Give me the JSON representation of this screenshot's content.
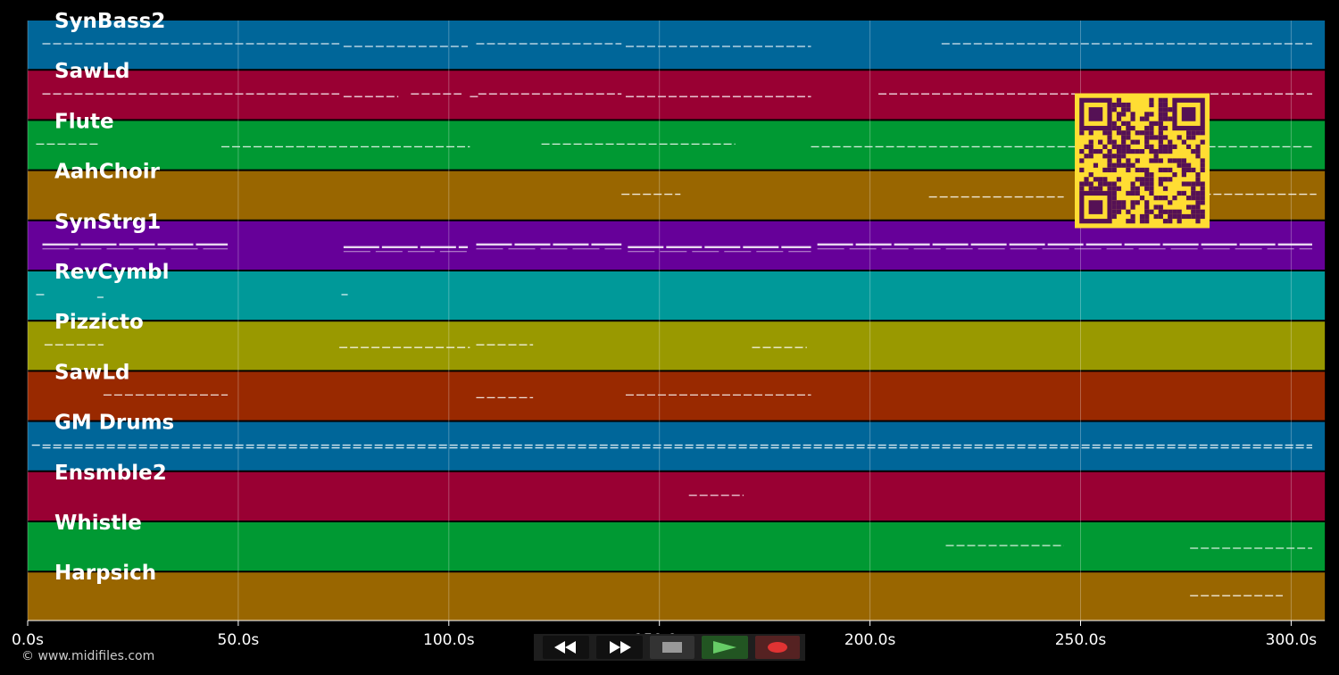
{
  "window": {
    "background": "#000000"
  },
  "tracks": [
    {
      "name": "SynBass2",
      "color": "#006699"
    },
    {
      "name": "SawLd",
      "color": "#990033"
    },
    {
      "name": "Flute",
      "color": "#009933"
    },
    {
      "name": "AahChoir",
      "color": "#996600"
    },
    {
      "name": "SynStrg1",
      "color": "#660099"
    },
    {
      "name": "RevCymbl",
      "color": "#009999"
    },
    {
      "name": "Pizzicto",
      "color": "#999900"
    },
    {
      "name": "SawLd",
      "color": "#992900"
    },
    {
      "name": "GM Drums",
      "color": "#006699"
    },
    {
      "name": "Ensmble2",
      "color": "#990033"
    },
    {
      "name": "Whistle",
      "color": "#009933"
    },
    {
      "name": "Harpsich",
      "color": "#996600"
    }
  ],
  "timeline": {
    "unit": "s",
    "max_seconds": 308,
    "ticks": [
      {
        "value": 0,
        "label": "0.0s"
      },
      {
        "value": 50,
        "label": "50.0s"
      },
      {
        "value": 100,
        "label": "100.0s"
      },
      {
        "value": 150,
        "label": "150.0s"
      },
      {
        "value": 200,
        "label": "200.0s"
      },
      {
        "value": 250,
        "label": "250.0s"
      },
      {
        "value": 300,
        "label": "300.0s"
      }
    ]
  },
  "note_segments": [
    [
      [
        3.5,
        74
      ],
      [
        75,
        104.5
      ],
      [
        106.5,
        141
      ],
      [
        142,
        186
      ],
      [
        217,
        305
      ]
    ],
    [
      [
        3.5,
        74
      ],
      [
        75,
        88
      ],
      [
        91,
        103
      ],
      [
        105,
        107
      ],
      [
        107,
        141
      ],
      [
        142,
        186
      ],
      [
        202,
        305
      ]
    ],
    [
      [
        2,
        17
      ],
      [
        46,
        105
      ],
      [
        122,
        168
      ],
      [
        186,
        305
      ]
    ],
    [
      [
        141,
        155
      ],
      [
        214,
        246
      ],
      [
        279,
        306
      ]
    ],
    [
      [
        3.5,
        47.5
      ],
      [
        75,
        104.5
      ],
      [
        106.5,
        141
      ],
      [
        142.5,
        186
      ],
      [
        187.5,
        305
      ]
    ],
    [
      [
        2,
        4
      ],
      [
        16.5,
        18
      ],
      [
        74.5,
        76
      ]
    ],
    [
      [
        4,
        18
      ],
      [
        74,
        105
      ],
      [
        106.5,
        120
      ],
      [
        172,
        185
      ]
    ],
    [
      [
        18,
        47.5
      ],
      [
        106.5,
        120
      ],
      [
        142,
        186
      ]
    ],
    [
      [
        1,
        305
      ],
      [
        3.5,
        305
      ]
    ],
    [
      [
        157,
        170
      ]
    ],
    [
      [
        218,
        246
      ],
      [
        276,
        305
      ]
    ],
    [
      [
        276,
        298
      ]
    ]
  ],
  "transport": {
    "rewind": {
      "icon": "rewind-icon"
    },
    "forward": {
      "icon": "fast-forward-icon"
    },
    "stop": {
      "icon": "stop-icon"
    },
    "play": {
      "icon": "play-icon",
      "color": "#66cc66"
    },
    "record": {
      "icon": "record-icon",
      "color": "#e03333"
    }
  },
  "overlay": {
    "qr_color": "#ffdd33",
    "qr_dark": "#551155"
  },
  "footer": {
    "copyright": "© www.midifiles.com"
  }
}
